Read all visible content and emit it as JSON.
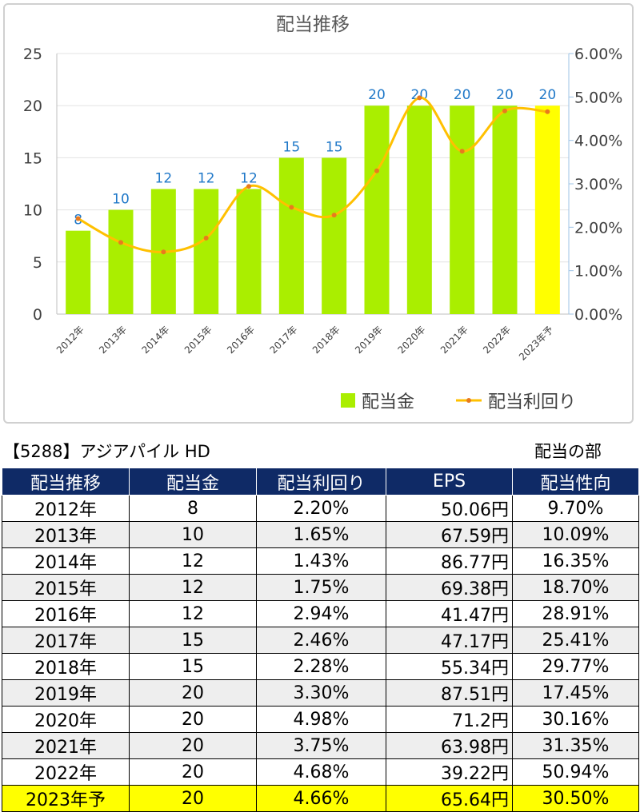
{
  "chart_data": {
    "type": "bar+line",
    "title": "配当推移",
    "categories": [
      "2012年",
      "2013年",
      "2014年",
      "2015年",
      "2016年",
      "2017年",
      "2018年",
      "2019年",
      "2020年",
      "2021年",
      "2022年",
      "2023年予"
    ],
    "series": [
      {
        "name": "配当金",
        "type": "bar",
        "axis": "left",
        "values": [
          8,
          10,
          12,
          12,
          12,
          15,
          15,
          20,
          20,
          20,
          20,
          20
        ],
        "data_labels": [
          "8",
          "10",
          "12",
          "12",
          "12",
          "15",
          "15",
          "20",
          "20",
          "20",
          "20",
          "20"
        ],
        "color": "#aaee00",
        "highlight_last_color": "#ffff00"
      },
      {
        "name": "配当利回り",
        "type": "line",
        "axis": "right",
        "values": [
          2.2,
          1.65,
          1.43,
          1.75,
          2.94,
          2.46,
          2.28,
          3.3,
          4.98,
          3.75,
          4.68,
          4.66
        ],
        "color": "#ffc000",
        "marker_color": "#e87a1e"
      }
    ],
    "left_axis": {
      "min": 0,
      "max": 25,
      "ticks": [
        "0",
        "5",
        "10",
        "15",
        "20",
        "25"
      ]
    },
    "right_axis": {
      "min": 0,
      "max": 6,
      "ticks": [
        "0.00%",
        "1.00%",
        "2.00%",
        "3.00%",
        "4.00%",
        "5.00%",
        "6.00%"
      ]
    },
    "grid": true,
    "legend_position": "bottom-right",
    "data_label_color": "#1f78c8"
  },
  "section": {
    "left_title": "【5288】アジアパイル HD",
    "right_title": "配当の部"
  },
  "table": {
    "headers": [
      "配当推移",
      "配当金",
      "配当利回り",
      "EPS",
      "配当性向"
    ],
    "rows": [
      [
        "2012年",
        "8",
        "2.20%",
        "50.06円",
        "9.70%"
      ],
      [
        "2013年",
        "10",
        "1.65%",
        "67.59円",
        "10.09%"
      ],
      [
        "2014年",
        "12",
        "1.43%",
        "86.77円",
        "16.35%"
      ],
      [
        "2015年",
        "12",
        "1.75%",
        "69.38円",
        "18.70%"
      ],
      [
        "2016年",
        "12",
        "2.94%",
        "41.47円",
        "28.91%"
      ],
      [
        "2017年",
        "15",
        "2.46%",
        "47.17円",
        "25.41%"
      ],
      [
        "2018年",
        "15",
        "2.28%",
        "55.34円",
        "29.77%"
      ],
      [
        "2019年",
        "20",
        "3.30%",
        "87.51円",
        "17.45%"
      ],
      [
        "2020年",
        "20",
        "4.98%",
        "71.2円",
        "30.16%"
      ],
      [
        "2021年",
        "20",
        "3.75%",
        "63.98円",
        "31.35%"
      ],
      [
        "2022年",
        "20",
        "4.68%",
        "39.22円",
        "50.94%"
      ],
      [
        "2023年予",
        "20",
        "4.66%",
        "65.64円",
        "30.50%"
      ]
    ]
  }
}
